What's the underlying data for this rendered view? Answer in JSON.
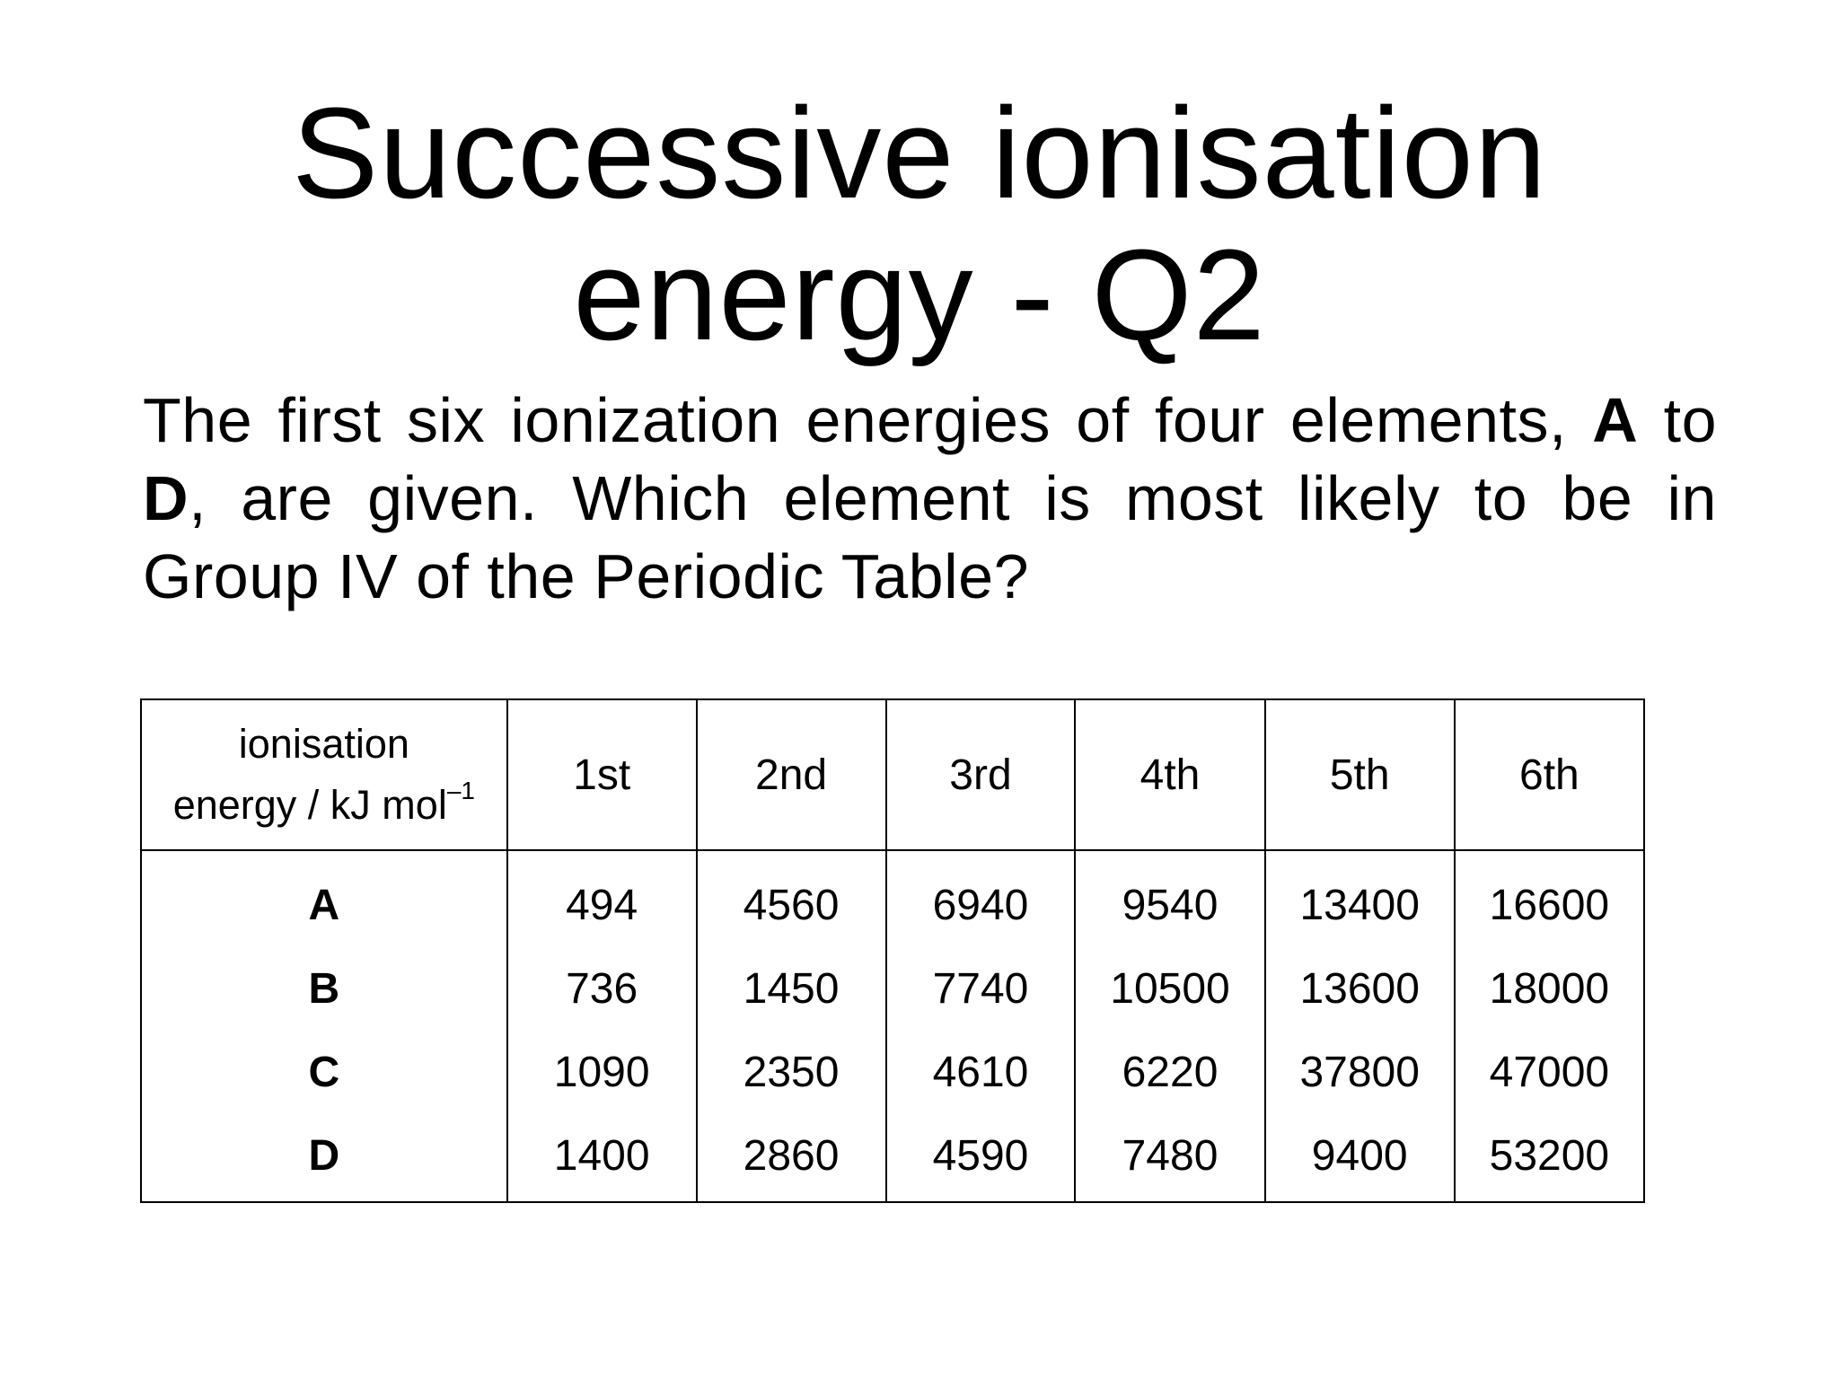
{
  "title": {
    "line1": "Successive ionisation",
    "line2": "energy - Q2"
  },
  "question": {
    "part1": "The first six ionization energies of four elements, ",
    "bold_a": "A",
    "part2": " to ",
    "bold_d": "D",
    "part3": ", are given. Which element is most likely to be in Group IV of the Periodic Table?"
  },
  "table": {
    "corner_line1": "ionisation",
    "corner_line2": "energy / kJ mol",
    "corner_superscript": "–1",
    "columns": [
      "1st",
      "2nd",
      "3rd",
      "4th",
      "5th",
      "6th"
    ],
    "rows": [
      {
        "label": "A",
        "values": [
          "494",
          "4560",
          "6940",
          "9540",
          "13400",
          "16600"
        ]
      },
      {
        "label": "B",
        "values": [
          "736",
          "1450",
          "7740",
          "10500",
          "13600",
          "18000"
        ]
      },
      {
        "label": "C",
        "values": [
          "1090",
          "2350",
          "4610",
          "6220",
          "37800",
          "47000"
        ]
      },
      {
        "label": "D",
        "values": [
          "1400",
          "2860",
          "4590",
          "7480",
          "9400",
          "53200"
        ]
      }
    ]
  }
}
